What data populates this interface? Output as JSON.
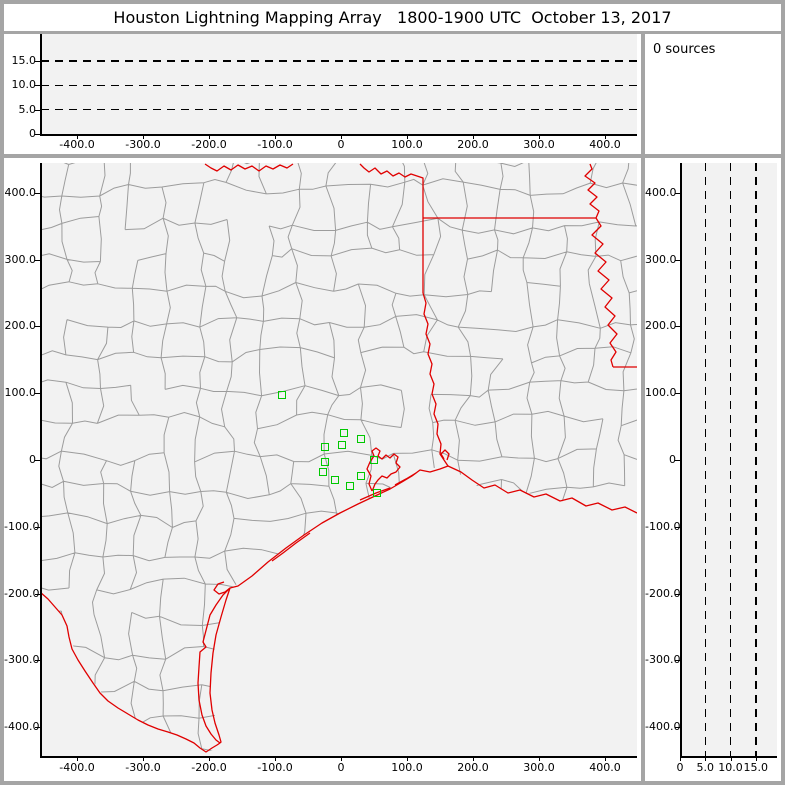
{
  "title": "Houston Lightning Mapping Array   1800-1900 UTC  October 13, 2017",
  "status": {
    "sources_label": "0 sources"
  },
  "colors": {
    "frame_gray": "#a5a5a5",
    "panel_white": "#ffffff",
    "plot_background": "#f2f2f2",
    "county_line": "#9c9c9c",
    "state_border_red": "#e00000",
    "station_green": "#00c800",
    "axis_black": "#000000"
  },
  "chart_data": [
    {
      "id": "altitude-vs-eastwest",
      "type": "scatter",
      "title": "",
      "x_ticks": [
        "-400.0",
        "-300.0",
        "-200.0",
        "-100.0",
        "0",
        "100.0",
        "200.0",
        "300.0",
        "400.0"
      ],
      "y_ticks": [
        "15.0",
        "10.0",
        "5.0",
        "0"
      ],
      "x_range": [
        -456,
        449
      ],
      "y_range": [
        0,
        20.5
      ],
      "gridlines_y": [
        15,
        10,
        5
      ],
      "grid_style": "dashed",
      "points": [],
      "source_count": 0
    },
    {
      "id": "plan-view-map",
      "type": "scatter",
      "title": "",
      "x_ticks": [
        "-400.0",
        "-300.0",
        "-200.0",
        "-100.0",
        "0",
        "100.0",
        "200.0",
        "300.0",
        "400.0"
      ],
      "y_ticks": [
        "400.0",
        "300.0",
        "200.0",
        "100.0",
        "0",
        "-100.0",
        "-200.0",
        "-300.0",
        "-400.0"
      ],
      "x_range": [
        -456,
        449
      ],
      "y_range": [
        -443,
        445
      ],
      "layers": [
        "county-boundaries",
        "state-borders-and-coastline",
        "lma-station-markers"
      ],
      "stations_km": [
        [
          -88,
          96
        ],
        [
          6,
          40
        ],
        [
          31,
          30
        ],
        [
          3,
          22
        ],
        [
          -23,
          18
        ],
        [
          -24,
          -3
        ],
        [
          -26,
          -19
        ],
        [
          -9,
          -31
        ],
        [
          14,
          -39
        ],
        [
          31,
          -25
        ],
        [
          50,
          0
        ],
        [
          55,
          -50
        ]
      ],
      "points": [],
      "source_count": 0
    },
    {
      "id": "altitude-vs-northsouth",
      "type": "scatter",
      "title": "",
      "x_ticks": [
        "0",
        "5.0",
        "10.0",
        "15.0"
      ],
      "y_ticks": [
        "400.0",
        "300.0",
        "200.0",
        "100.0",
        "0",
        "-100.0",
        "-200.0",
        "-300.0",
        "-400.0"
      ],
      "x_range": [
        0,
        19.2
      ],
      "y_range": [
        -443,
        445
      ],
      "gridlines_x": [
        5,
        10,
        15
      ],
      "grid_style": "dashed",
      "points": [],
      "source_count": 0
    }
  ]
}
